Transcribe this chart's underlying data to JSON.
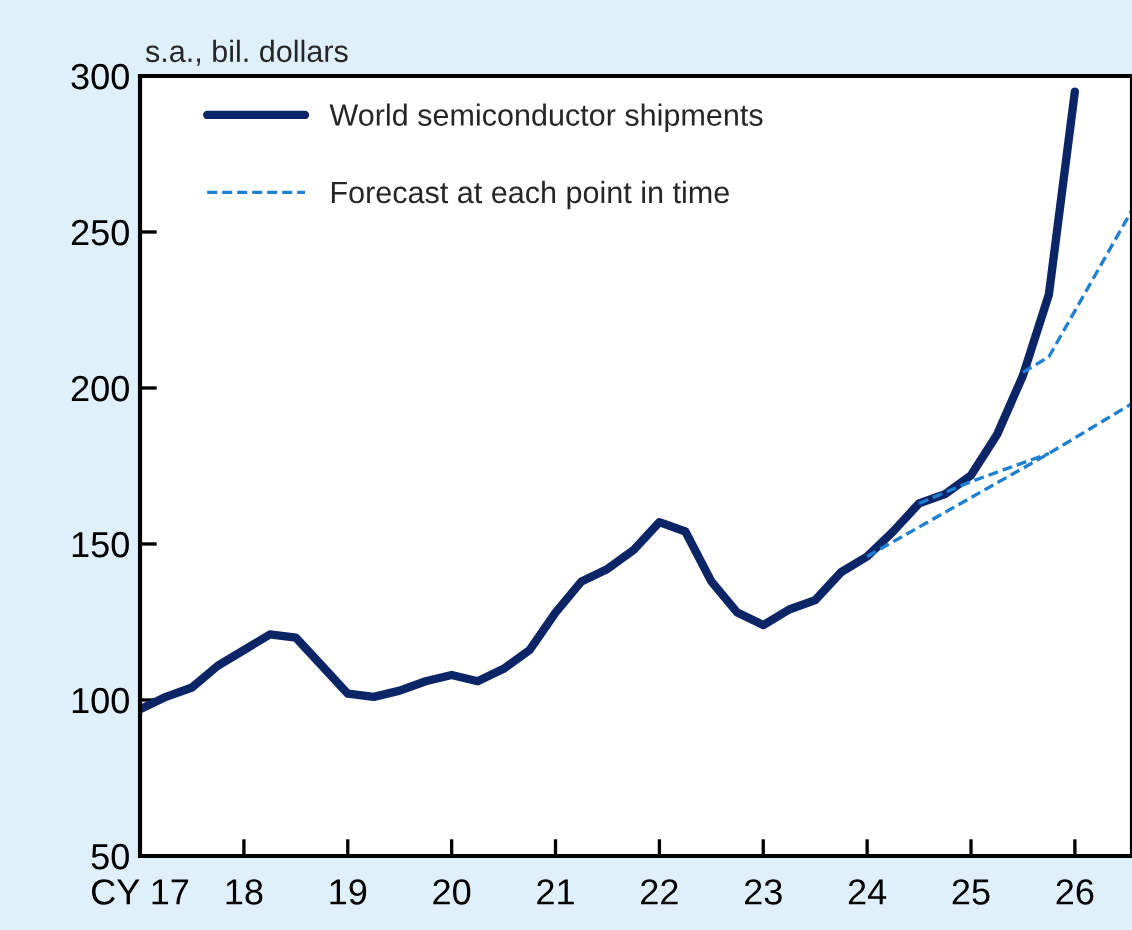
{
  "chart_data": {
    "type": "line",
    "ylabel": "s.a., bil. dollars",
    "xlim": [
      17,
      26.55
    ],
    "xticks": [
      {
        "value": 17,
        "label": "CY 17"
      },
      18,
      19,
      20,
      21,
      22,
      23,
      24,
      25,
      26
    ],
    "ylim": [
      50,
      300
    ],
    "yticks": [
      50,
      100,
      150,
      200,
      250,
      300
    ],
    "grid": false,
    "legend": "top left",
    "series": [
      {
        "name": "World semiconductor shipments",
        "color": "#0b2566",
        "line_style": "solid",
        "x": [
          17.0,
          17.25,
          17.5,
          17.75,
          18.0,
          18.25,
          18.5,
          18.75,
          19.0,
          19.25,
          19.5,
          19.75,
          20.0,
          20.25,
          20.5,
          20.75,
          21.0,
          21.25,
          21.5,
          21.75,
          22.0,
          22.25,
          22.5,
          22.75,
          23.0,
          23.25,
          23.5,
          23.75,
          24.0,
          24.25,
          24.5,
          24.75,
          25.0,
          25.25,
          25.5,
          25.75,
          26.0
        ],
        "values": [
          97,
          101,
          104,
          111,
          116,
          121,
          120,
          111,
          102,
          101,
          103,
          106,
          108,
          106,
          110,
          116,
          128,
          138,
          142,
          148,
          157,
          154,
          138,
          128,
          124,
          129,
          132,
          141,
          146,
          154,
          163,
          166,
          172,
          185,
          204,
          230,
          295
        ]
      },
      {
        "name": "Forecast at each point in time",
        "color": "#1f7fd0",
        "line_style": "dashed",
        "x": [
          24.0,
          25.75,
          26.55
        ],
        "values": [
          146,
          179,
          195
        ]
      },
      {
        "color": "#1f7fd0",
        "line_style": "dashed",
        "x": [
          24.5,
          25.0,
          25.5,
          25.75
        ],
        "values": [
          163,
          170,
          176,
          179
        ]
      },
      {
        "color": "#1f7fd0",
        "line_style": "dashed",
        "x": [
          25.5,
          25.75,
          26.55
        ],
        "values": [
          205,
          210,
          257
        ]
      }
    ]
  }
}
